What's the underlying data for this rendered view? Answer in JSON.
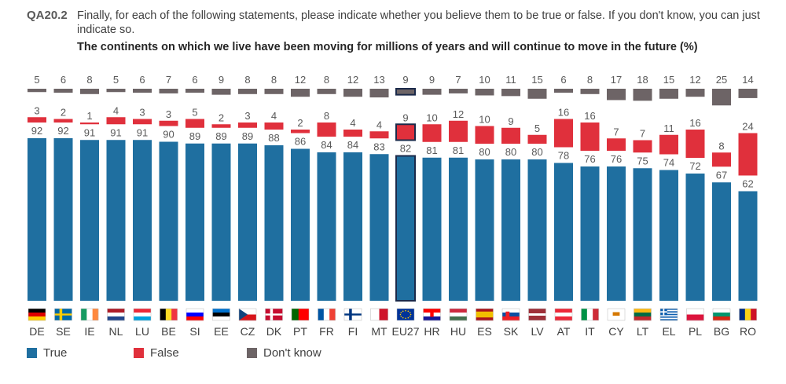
{
  "header": {
    "question_id": "QA20.2",
    "question_text": "Finally, for each of the following statements, please indicate whether you believe them to be true or false. If you don't know, you can just indicate so.",
    "statement": "The continents on which we live have been moving for millions of years and will continue to move in the future (%)"
  },
  "colors": {
    "true": "#1f6fa0",
    "false": "#e0303c",
    "dont_know": "#6d6466",
    "highlight_border": "#1b2a4a"
  },
  "legend": {
    "true_label": "True",
    "false_label": "False",
    "dont_know_label": "Don't know"
  },
  "chart_data": {
    "type": "bar",
    "categories": [
      "DE",
      "SE",
      "IE",
      "NL",
      "LU",
      "BE",
      "SI",
      "EE",
      "CZ",
      "DK",
      "PT",
      "FR",
      "FI",
      "MT",
      "EU27",
      "HR",
      "HU",
      "ES",
      "SK",
      "LV",
      "AT",
      "IT",
      "CY",
      "LT",
      "EL",
      "PL",
      "BG",
      "RO"
    ],
    "highlight": "EU27",
    "series": [
      {
        "name": "True",
        "values": [
          92,
          92,
          91,
          91,
          91,
          90,
          89,
          89,
          89,
          88,
          86,
          84,
          84,
          83,
          82,
          81,
          81,
          80,
          80,
          80,
          78,
          76,
          76,
          75,
          74,
          72,
          67,
          62
        ]
      },
      {
        "name": "False",
        "values": [
          3,
          2,
          1,
          4,
          3,
          3,
          5,
          2,
          3,
          4,
          2,
          8,
          4,
          4,
          9,
          10,
          12,
          10,
          9,
          5,
          16,
          16,
          7,
          7,
          11,
          16,
          8,
          24
        ]
      },
      {
        "name": "Don't know",
        "values": [
          5,
          6,
          8,
          5,
          6,
          7,
          6,
          9,
          8,
          8,
          12,
          8,
          12,
          13,
          9,
          9,
          7,
          10,
          11,
          15,
          6,
          8,
          17,
          18,
          15,
          12,
          25,
          14
        ]
      }
    ]
  }
}
